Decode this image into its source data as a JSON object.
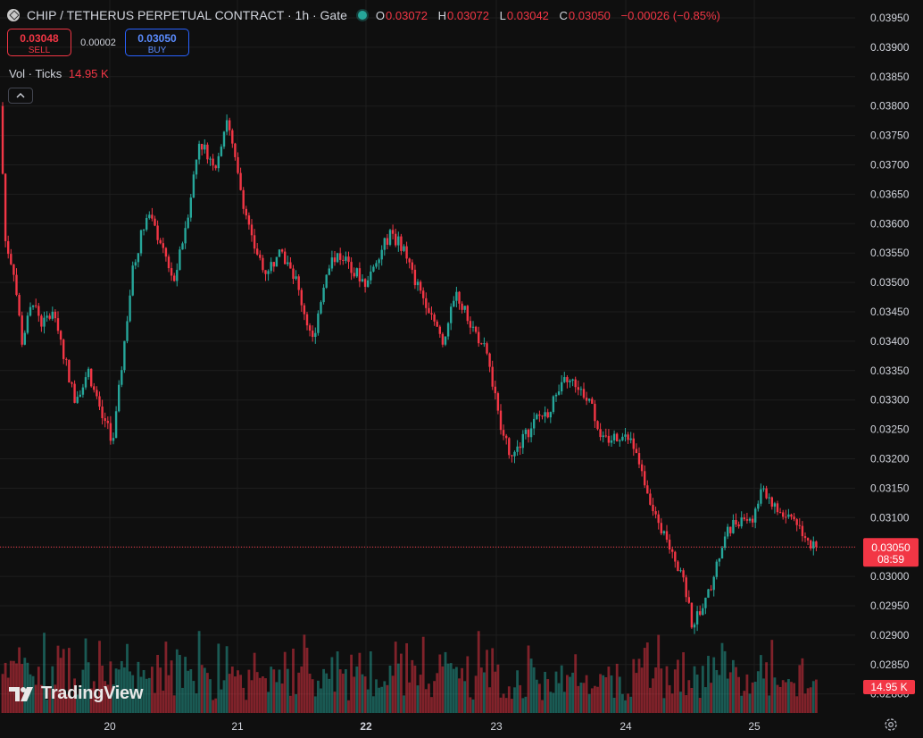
{
  "header": {
    "title": "CHIP / TETHERUS PERPETUAL CONTRACT · 1h · Gate",
    "ohlc": [
      {
        "k": "O",
        "v": "0.03072"
      },
      {
        "k": "H",
        "v": "0.03072"
      },
      {
        "k": "L",
        "v": "0.03042"
      },
      {
        "k": "C",
        "v": "0.03050"
      }
    ],
    "change": "−0.00026 (−0.85%)"
  },
  "trade": {
    "sell_price": "0.03048",
    "sell_label": "SELL",
    "spread": "0.00002",
    "buy_price": "0.03050",
    "buy_label": "BUY"
  },
  "volume": {
    "label": "Vol · Ticks",
    "value": "14.95 K"
  },
  "brand": "TradingView",
  "colors": {
    "up": "#26a69a",
    "down": "#f23645",
    "background": "#0f0f0f"
  },
  "icons": {
    "collapse": "chevron-up-icon",
    "settings": "gear-icon"
  },
  "chart_data": {
    "type": "candlestick",
    "interval": "1h",
    "y_axis": {
      "ticks": [
        "0.03950",
        "0.03900",
        "0.03850",
        "0.03800",
        "0.03750",
        "0.03700",
        "0.03650",
        "0.03600",
        "0.03550",
        "0.03500",
        "0.03450",
        "0.03400",
        "0.03350",
        "0.03300",
        "0.03250",
        "0.03200",
        "0.03150",
        "0.03100",
        "0.03050",
        "0.03000",
        "0.02950",
        "0.02900",
        "0.02850",
        "0.02800"
      ],
      "position": "right"
    },
    "x_axis": {
      "ticks": [
        "20",
        "21",
        "22",
        "23",
        "24",
        "25"
      ],
      "bold_tick": "22"
    },
    "last_price": {
      "value": 0.0305,
      "label": "0.03050",
      "countdown": "08:59"
    },
    "volume_last_label": "14.95 K",
    "keypoints": [
      [
        0,
        0.038
      ],
      [
        2,
        0.0357
      ],
      [
        5,
        0.0352
      ],
      [
        8,
        0.034
      ],
      [
        12,
        0.0347
      ],
      [
        15,
        0.0343
      ],
      [
        20,
        0.0345
      ],
      [
        23,
        0.0338
      ],
      [
        27,
        0.033
      ],
      [
        32,
        0.0335
      ],
      [
        36,
        0.0328
      ],
      [
        41,
        0.0323
      ],
      [
        45,
        0.034
      ],
      [
        48,
        0.0352
      ],
      [
        53,
        0.0362
      ],
      [
        58,
        0.0357
      ],
      [
        63,
        0.035
      ],
      [
        68,
        0.0362
      ],
      [
        72,
        0.0374
      ],
      [
        78,
        0.037
      ],
      [
        82,
        0.0378
      ],
      [
        86,
        0.0368
      ],
      [
        91,
        0.0357
      ],
      [
        96,
        0.0352
      ],
      [
        102,
        0.0355
      ],
      [
        107,
        0.035
      ],
      [
        113,
        0.034
      ],
      [
        118,
        0.0352
      ],
      [
        122,
        0.0355
      ],
      [
        126,
        0.0353
      ],
      [
        132,
        0.035
      ],
      [
        137,
        0.0355
      ],
      [
        141,
        0.0358
      ],
      [
        146,
        0.0356
      ],
      [
        150,
        0.035
      ],
      [
        156,
        0.0345
      ],
      [
        160,
        0.034
      ],
      [
        165,
        0.0348
      ],
      [
        170,
        0.0343
      ],
      [
        176,
        0.0338
      ],
      [
        181,
        0.0325
      ],
      [
        185,
        0.032
      ],
      [
        190,
        0.0324
      ],
      [
        194,
        0.0327
      ],
      [
        198,
        0.0328
      ],
      [
        204,
        0.0333
      ],
      [
        208,
        0.0333
      ],
      [
        213,
        0.033
      ],
      [
        218,
        0.0323
      ],
      [
        224,
        0.0324
      ],
      [
        228,
        0.0323
      ],
      [
        232,
        0.0318
      ],
      [
        237,
        0.031
      ],
      [
        242,
        0.0305
      ],
      [
        247,
        0.03
      ],
      [
        250,
        0.0292
      ],
      [
        254,
        0.0294
      ],
      [
        259,
        0.0302
      ],
      [
        263,
        0.0308
      ],
      [
        268,
        0.031
      ],
      [
        272,
        0.031
      ],
      [
        276,
        0.0315
      ],
      [
        281,
        0.0311
      ],
      [
        287,
        0.031
      ],
      [
        292,
        0.0306
      ],
      [
        294,
        0.0305
      ]
    ]
  }
}
